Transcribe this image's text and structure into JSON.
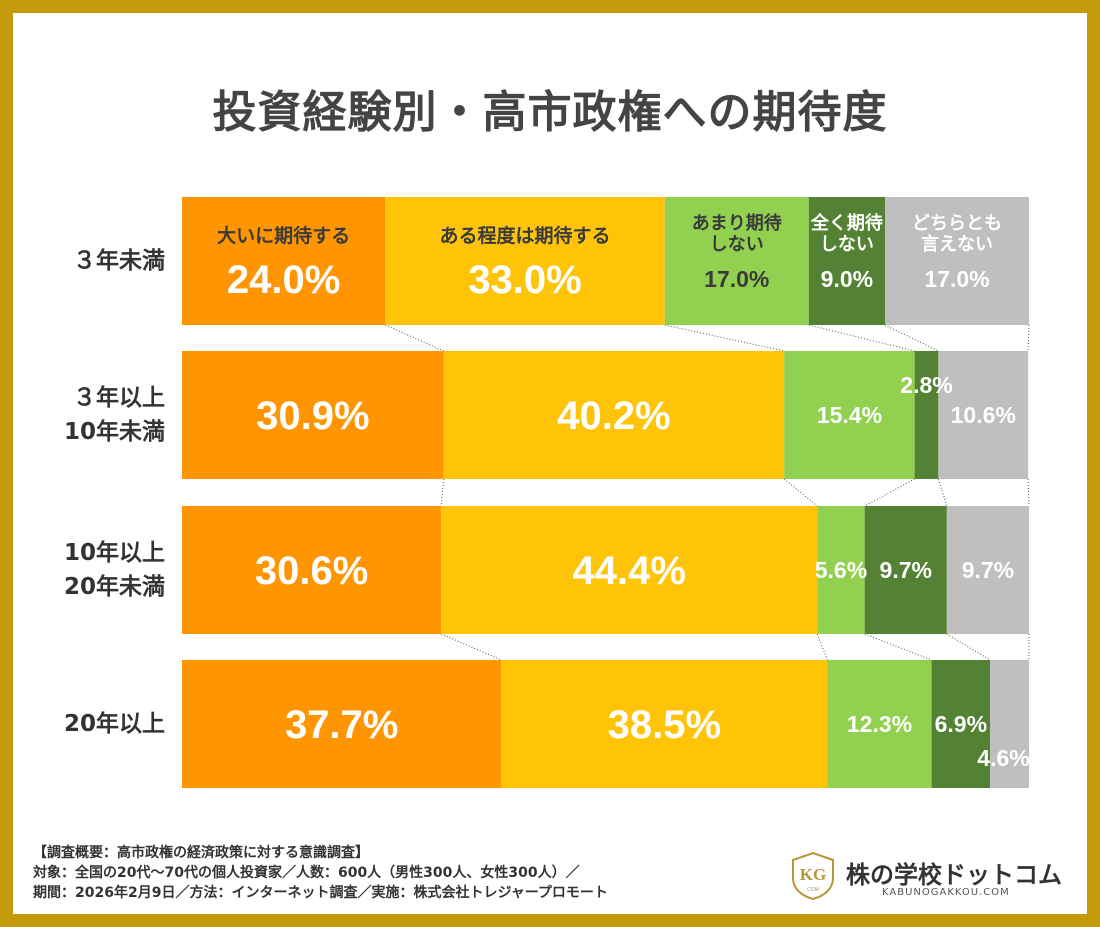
{
  "title": "投資経験別・高市政権への期待度",
  "chart_data": {
    "type": "bar",
    "stacked": "100%",
    "orientation": "horizontal",
    "categories": [
      "３年未満",
      "３年以上\n10年未満",
      "10年以上\n20年未満",
      "20年以上"
    ],
    "series": [
      {
        "name": "大いに期待する",
        "values": [
          24.0,
          30.9,
          30.6,
          37.7
        ],
        "color": "#ff9500"
      },
      {
        "name": "ある程度は期待する",
        "values": [
          33.0,
          40.2,
          44.4,
          38.5
        ],
        "color": "#ffc408"
      },
      {
        "name": "あまり期待\nしない",
        "values": [
          17.0,
          15.4,
          5.6,
          12.3
        ],
        "color": "#92d050"
      },
      {
        "name": "全く期待\nしない",
        "values": [
          9.0,
          2.8,
          9.7,
          6.9
        ],
        "color": "#548235"
      },
      {
        "name": "どちらとも\n言えない",
        "values": [
          17.0,
          10.6,
          9.7,
          4.6
        ],
        "color": "#bfbfbf"
      }
    ],
    "data_labels": [
      [
        "24.0%",
        "33.0%",
        "17.0%",
        "9.0%",
        "17.0%"
      ],
      [
        "30.9%",
        "40.2%",
        "15.4%",
        "2.8%",
        "10.6%"
      ],
      [
        "30.6%",
        "44.4%",
        "5.6%",
        "9.7%",
        "9.7%"
      ],
      [
        "37.7%",
        "38.5%",
        "12.3%",
        "6.9%",
        "4.6%"
      ]
    ],
    "legend": "inside-first-bar",
    "series_lines": true,
    "grid": false
  },
  "footer": {
    "line1": "【調査概要：高市政権の経済政策に対する意識調査】",
    "line2": "対象：全国の20代〜70代の個人投資家／人数：600人（男性300人、女性300人）／",
    "line3": "期間：2026年2月9日／方法：インターネット調査／実施：株式会社トレジャープロモート"
  },
  "logo": {
    "name": "株の学校ドットコム",
    "sub": "KABUNOGAKKOU.COM",
    "mark": "KG",
    "mark_sub": "COM"
  }
}
